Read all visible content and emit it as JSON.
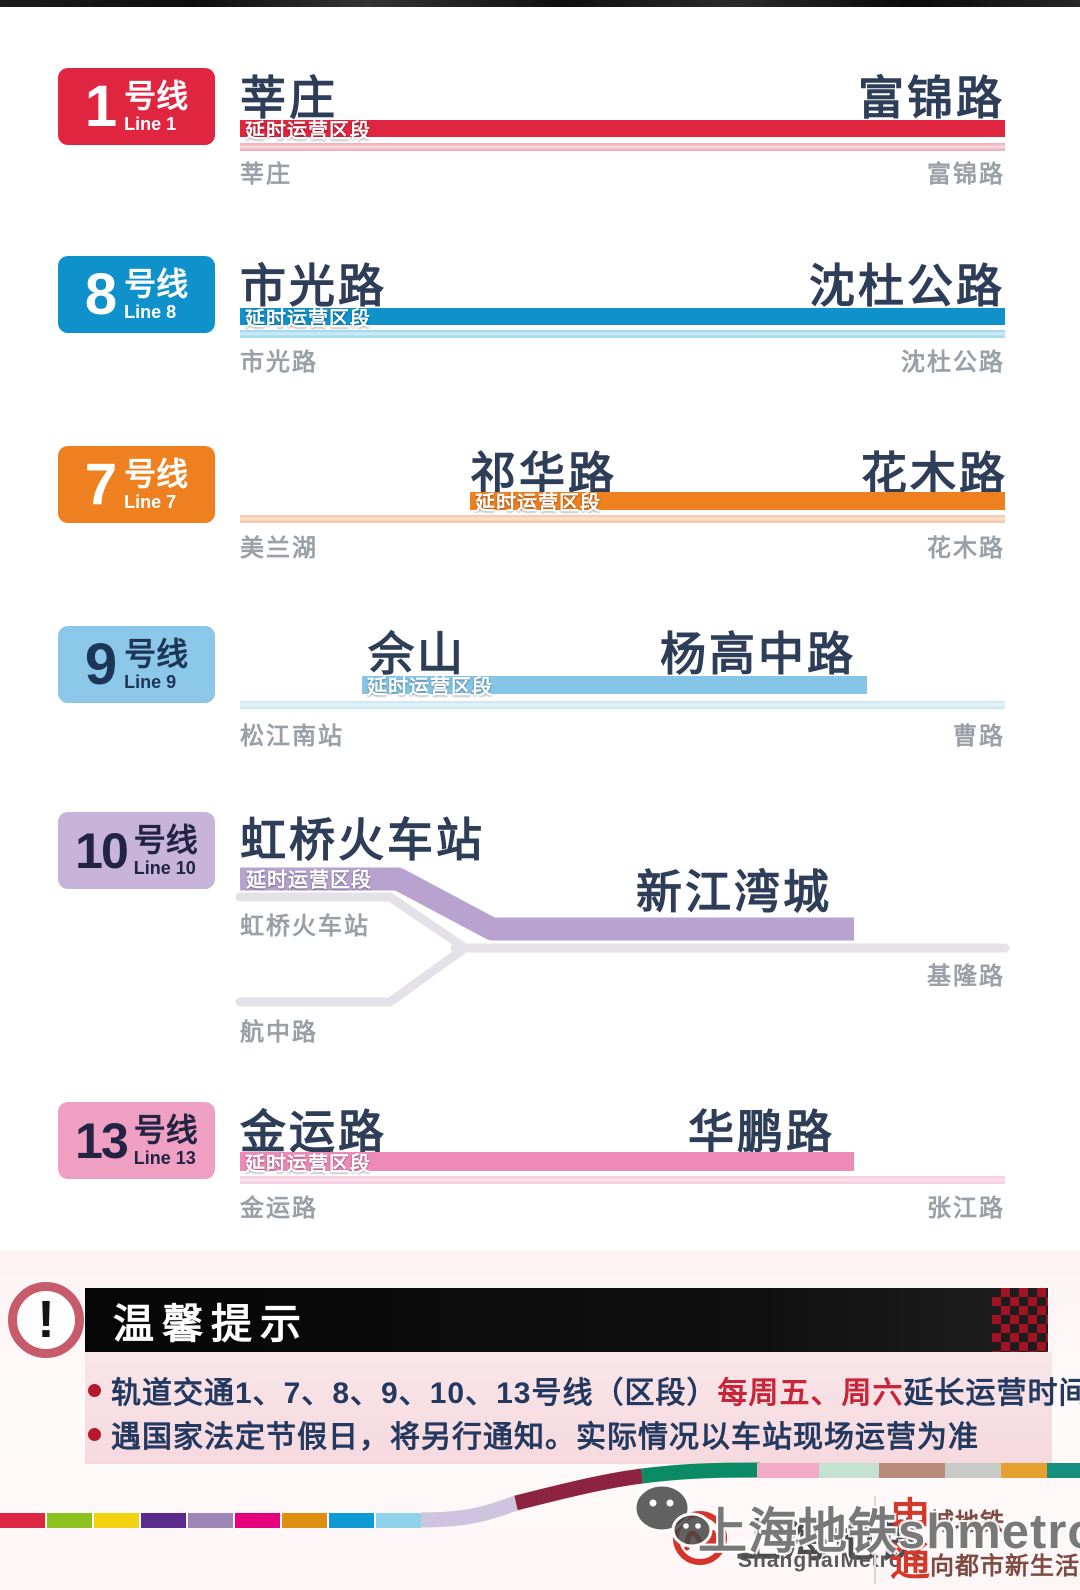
{
  "lines": {
    "l1": {
      "badge_number": "1",
      "badge_suffix": "号线",
      "badge_eng": "Line 1",
      "color": "#e02540",
      "light_color": "#f2b3c0",
      "ext_tag": "延时运营区段",
      "ext_from": "莘庄",
      "ext_to": "富锦路",
      "terminus_from": "莘庄",
      "terminus_to": "富锦路"
    },
    "l8": {
      "badge_number": "8",
      "badge_suffix": "号线",
      "badge_eng": "Line 8",
      "color": "#0f92cc",
      "light_color": "#a6dbee",
      "ext_tag": "延时运营区段",
      "ext_from": "市光路",
      "ext_to": "沈杜公路",
      "terminus_from": "市光路",
      "terminus_to": "沈杜公路"
    },
    "l7": {
      "badge_number": "7",
      "badge_suffix": "号线",
      "badge_eng": "Line 7",
      "color": "#ef8020",
      "light_color": "#f5cbab",
      "ext_tag": "延时运营区段",
      "ext_from": "祁华路",
      "ext_to": "花木路",
      "terminus_from": "美兰湖",
      "terminus_to": "花木路"
    },
    "l9": {
      "badge_number": "9",
      "badge_suffix": "号线",
      "badge_eng": "Line 9",
      "color": "#85c5e7",
      "light_color": "#cfe9f3",
      "ext_tag": "延时运营区段",
      "ext_from": "佘山",
      "ext_to": "杨高中路",
      "terminus_from": "松江南站",
      "terminus_to": "曹路"
    },
    "l10": {
      "badge_number": "10",
      "badge_suffix": "号线",
      "badge_eng": "Line 10",
      "color": "#b7a2d0",
      "light_color": "#e4e2e8",
      "ext_tag": "延时运营区段",
      "ext_from": "虹桥火车站",
      "ext_to": "新江湾城",
      "branch_a": "虹桥火车站",
      "branch_b": "航中路",
      "terminus_to": "基隆路"
    },
    "l13": {
      "badge_number": "13",
      "badge_suffix": "号线",
      "badge_eng": "Line 13",
      "color": "#ee8ab7",
      "light_color": "#f7cfe0",
      "ext_tag": "延时运营区段",
      "ext_from": "金运路",
      "ext_to": "华鹏路",
      "terminus_from": "金运路",
      "terminus_to": "张江路"
    }
  },
  "notice": {
    "title": "温馨提示",
    "bullet1": {
      "p1": "轨道交通1、7、8、9、10、13号线（区段）",
      "p2": "每周五、周六",
      "p3": "延长运营时间",
      "p4": "。"
    },
    "bullet2": "遇国家法定节假日，将另行通知。实际情况以车站现场运营为准",
    "accent_red": "#c9253a",
    "text_navy": "#243960"
  },
  "footer": {
    "brand_title": "上海地铁",
    "brand_subtitle": "ShanghaiMetro",
    "slogan_line1_big": "申",
    "slogan_line1_rest": "城地铁",
    "slogan_line2_big": "通",
    "slogan_line2_rest": "向都市新生活",
    "watermark_text": "上海地铁shmetro",
    "logo_red": "#d5342b",
    "ribbon_bottom_colors": [
      "#dc2742",
      "#8cc11e",
      "#f3d211",
      "#5a2b8c",
      "#9f86b8",
      "#e6007e",
      "#dd8f12",
      "#0d9bd2",
      "#8fd2ea"
    ],
    "ribbon_curve_colors": [
      "#cdc4df",
      "#8c2340",
      "#0b8a66"
    ],
    "ribbon_top_colors": [
      "#f3aac6",
      "#c4e1d1",
      "#ba8a7d",
      "#c7cac7",
      "#e6a02f",
      "#178f7f"
    ]
  }
}
